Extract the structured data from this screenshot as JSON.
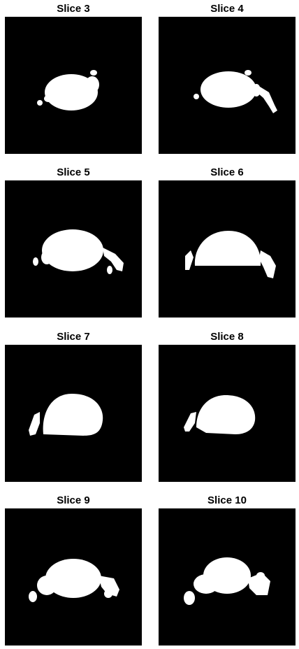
{
  "figure": {
    "panels": [
      {
        "title": "Slice 3"
      },
      {
        "title": "Slice 4"
      },
      {
        "title": "Slice 5"
      },
      {
        "title": "Slice 6"
      },
      {
        "title": "Slice 7"
      },
      {
        "title": "Slice 8"
      },
      {
        "title": "Slice 9"
      },
      {
        "title": "Slice 10"
      }
    ]
  }
}
